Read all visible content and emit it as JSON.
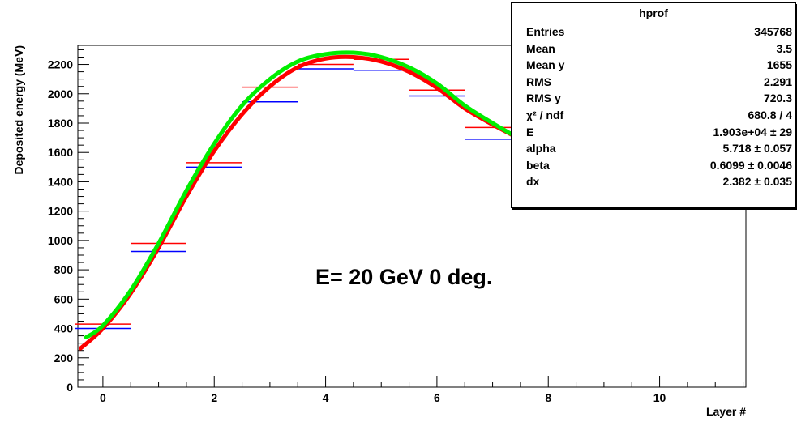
{
  "chart_data": {
    "type": "line",
    "title": "",
    "xlabel": "Layer #",
    "ylabel": "Deposited energy (MeV)",
    "xlim": [
      -0.45,
      11.55
    ],
    "ylim": [
      0,
      2330
    ],
    "x_ticks": [
      0,
      2,
      4,
      6,
      8,
      10
    ],
    "y_ticks": [
      0,
      200,
      400,
      600,
      800,
      1000,
      1200,
      1400,
      1600,
      1800,
      2000,
      2200
    ],
    "annotation": "E= 20 GeV 0 deg.",
    "series": [
      {
        "style": "step",
        "color": "#ff0000",
        "bin_edges": [
          -0.5,
          0.5,
          1.5,
          2.5,
          3.5,
          4.5,
          5.5,
          6.5,
          7.5
        ],
        "values": [
          430,
          980,
          1530,
          2045,
          2200,
          2235,
          2025,
          1770
        ]
      },
      {
        "style": "step",
        "color": "#0000ff",
        "bin_edges": [
          -0.5,
          0.5,
          1.5,
          2.5,
          3.5,
          4.5,
          5.5,
          6.5,
          7.5
        ],
        "values": [
          400,
          925,
          1500,
          1945,
          2170,
          2160,
          1985,
          1690
        ]
      },
      {
        "style": "curve",
        "color": "#ff0000",
        "x": [
          -0.4,
          0,
          0.5,
          1,
          1.5,
          2,
          2.5,
          3,
          3.5,
          4,
          4.5,
          5,
          5.5,
          6,
          6.5,
          7,
          7.5
        ],
        "y": [
          265,
          400,
          640,
          950,
          1300,
          1610,
          1860,
          2050,
          2180,
          2240,
          2250,
          2220,
          2150,
          2040,
          1900,
          1790,
          1690
        ]
      },
      {
        "style": "curve",
        "color": "#00ee00",
        "x": [
          -0.3,
          0,
          0.5,
          1,
          1.5,
          2,
          2.5,
          3,
          3.5,
          4,
          4.5,
          5,
          5.5,
          6,
          6.5,
          7,
          7.5
        ],
        "y": [
          340,
          420,
          660,
          980,
          1340,
          1660,
          1920,
          2100,
          2220,
          2270,
          2280,
          2250,
          2180,
          2070,
          1920,
          1800,
          1690
        ]
      }
    ]
  },
  "stats_box": {
    "title": "hprof",
    "rows": [
      {
        "label": "Entries",
        "value": "345768"
      },
      {
        "label": "Mean",
        "value": "3.5"
      },
      {
        "label": "Mean y",
        "value": "1655"
      },
      {
        "label": "RMS",
        "value": "2.291"
      },
      {
        "label": "RMS y",
        "value": "720.3"
      },
      {
        "label": "χ² / ndf",
        "value": "680.8 / 4"
      },
      {
        "label": "E",
        "value": "1.903e+04 ± 29"
      },
      {
        "label": "alpha",
        "value": "5.718 ± 0.057"
      },
      {
        "label": "beta",
        "value": "0.6099 ± 0.0046"
      },
      {
        "label": "dx",
        "value": "2.382 ± 0.035"
      }
    ]
  }
}
